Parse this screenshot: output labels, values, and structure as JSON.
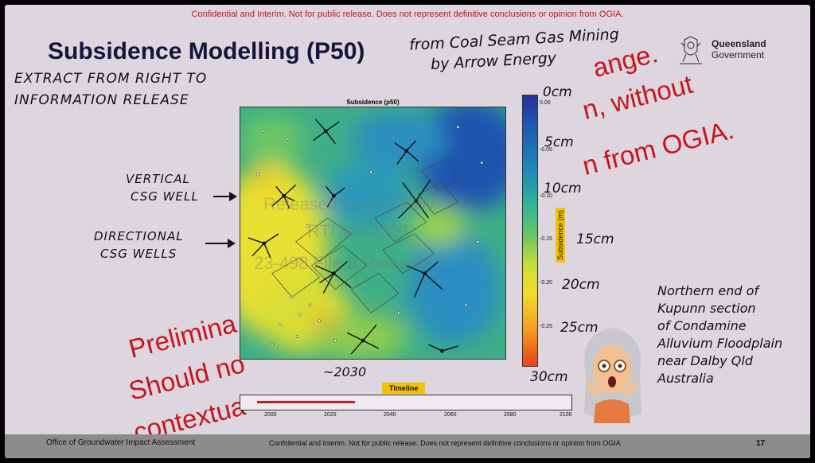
{
  "slide": {
    "confidential_top": "Confidential and Interim. Not for public release. Does not represent definitive conclusions or opinion from OGIA.",
    "title": "Subsidence Modelling (P50)",
    "logo_line1": "Queensland",
    "logo_line2": "Government"
  },
  "annotations": {
    "from_line1": "from Coal Seam Gas Mining",
    "from_line2": "by Arrow Energy",
    "extract_line1": "EXTRACT FROM RIGHT TO",
    "extract_line2": "INFORMATION RELEASE",
    "vertical_line1": "VERTICAL",
    "vertical_line2": "CSG WELL",
    "directional_line1": "DIRECTIONAL",
    "directional_line2": "CSG WELLS",
    "cm_0": "0cm",
    "cm_5": "5cm",
    "cm_10": "10cm",
    "cm_15": "15cm",
    "cm_20": "20cm",
    "cm_25": "25cm",
    "cm_30": "30cm",
    "year_2030": "~2030",
    "note_l1": "Northern end of",
    "note_l2": "Kupunn section",
    "note_l3": "of Condamine",
    "note_l4": "Alluvium Floodplain",
    "note_l5": "near Dalby Qld",
    "note_l6": "Australia"
  },
  "red_overlay": {
    "right_1": "ange.",
    "right_2": "n, without",
    "right_3": "n from OGIA.",
    "left_1": "Prelimina",
    "left_2": "Should no",
    "left_3": "contextua"
  },
  "watermark": {
    "line1": "Released by DCCMW",
    "line2": "RTI Act 2009",
    "line3": "23-498 File B Release"
  },
  "map": {
    "title": "Subsidence (p50)",
    "colorbar_label": "Subsidence (m)",
    "ticks": [
      "0.00",
      "-0.05",
      "-0.10",
      "-0.15",
      "-0.20",
      "-0.25"
    ]
  },
  "timeline": {
    "label": "Timeline",
    "ticks": [
      "2000",
      "2020",
      "2040",
      "2060",
      "2080",
      "2100"
    ]
  },
  "footer": {
    "left": "Office of Groundwater Impact Assessment",
    "center": "Confidential and Interim. Not for public release. Does not represent definitive conclusions or opinion from OGIA",
    "page": "17"
  }
}
